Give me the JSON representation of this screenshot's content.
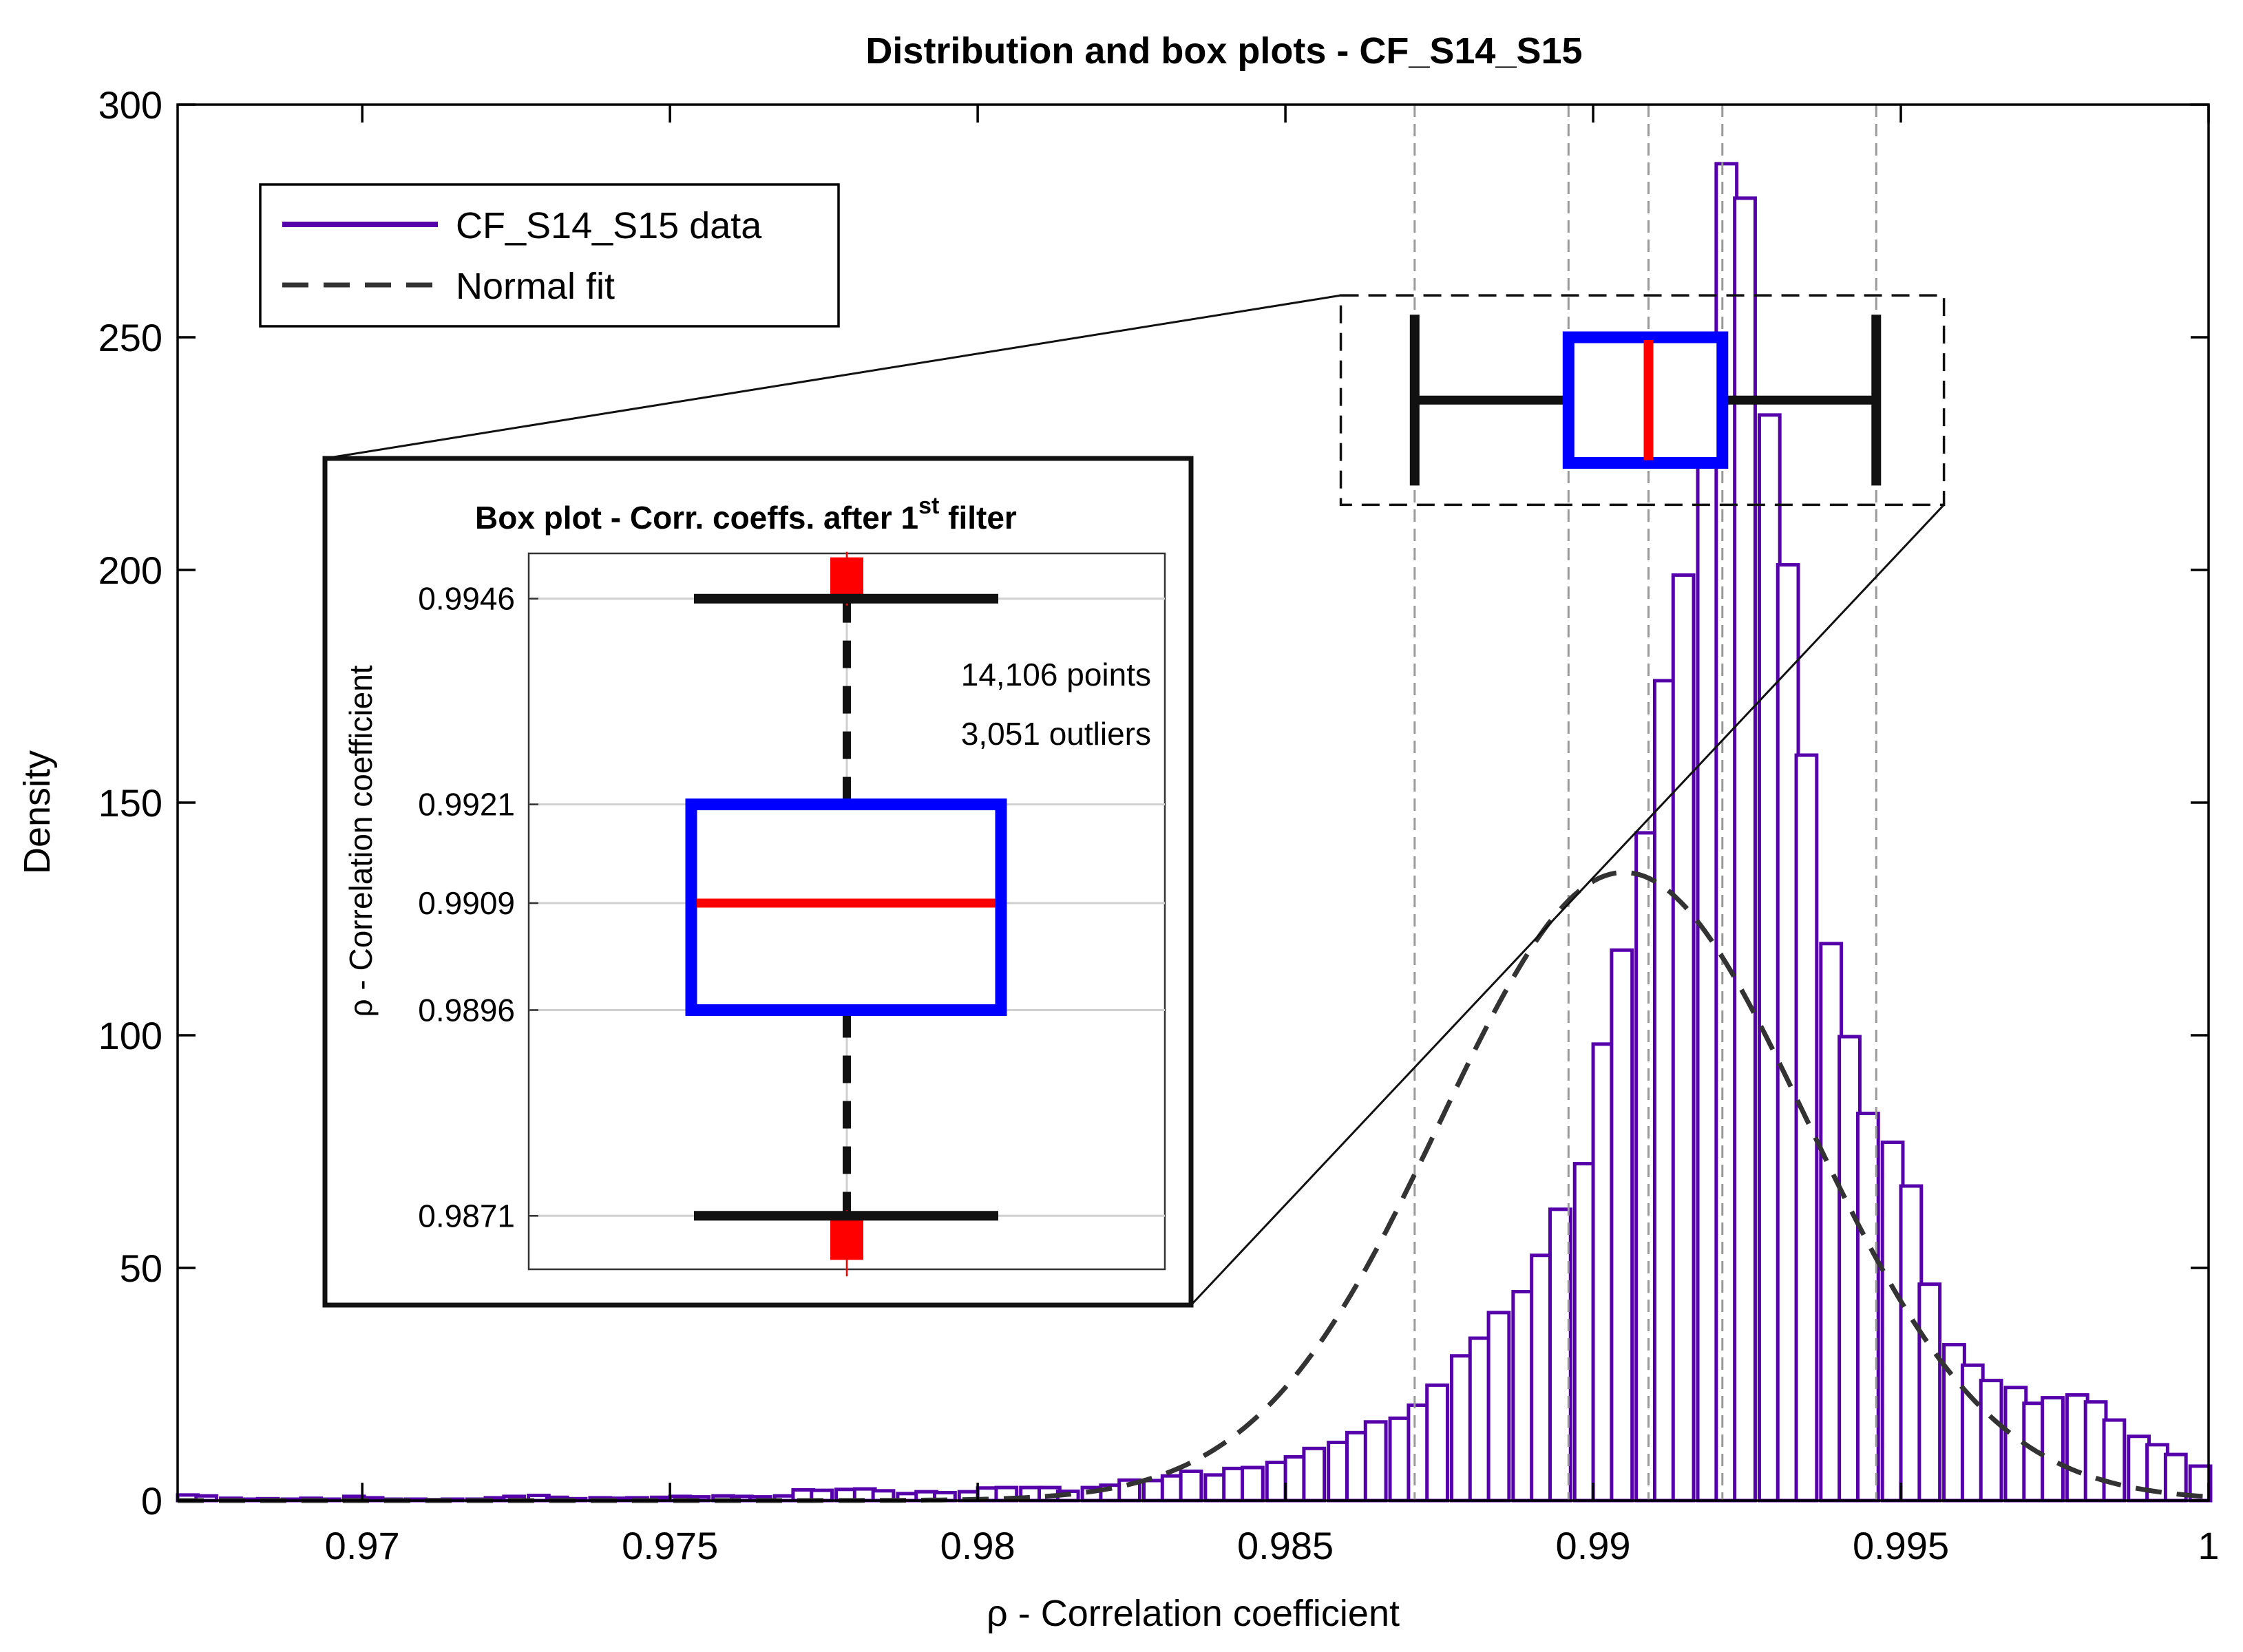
{
  "chart_data": {
    "type": "bar",
    "title": "Distribution and box plots - CF_S14_S15",
    "xlabel": "ρ - Correlation coefficient",
    "ylabel": "Density",
    "xlim": [
      0.967,
      1.0
    ],
    "ylim": [
      0,
      300
    ],
    "xticks": [
      0.97,
      0.975,
      0.98,
      0.985,
      0.99,
      0.995,
      1.0
    ],
    "xtick_labels": [
      "0.97",
      "0.975",
      "0.98",
      "0.985",
      "0.99",
      "0.995",
      "1"
    ],
    "yticks": [
      0,
      50,
      100,
      150,
      200,
      250,
      300
    ],
    "ytick_labels": [
      "0",
      "50",
      "100",
      "150",
      "200",
      "250",
      "300"
    ],
    "legend": {
      "position": "top-left",
      "entries": [
        "CF_S14_S15 data",
        "Normal fit"
      ]
    },
    "colors": {
      "histogram": "#5500aa",
      "fit": "#333333",
      "guide_lines": "#999999",
      "box": "#0000ff",
      "median": "#ff0000",
      "whisker": "#111111",
      "grid": "#d0d0d0"
    },
    "series": [
      {
        "name": "CF_S14_S15 data",
        "kind": "histogram",
        "bin_width": 0.000333,
        "bins": [
          [
            0.967,
            1.2
          ],
          [
            0.9673,
            1.0
          ],
          [
            0.9677,
            0.5
          ],
          [
            0.968,
            0.3
          ],
          [
            0.9683,
            0.4
          ],
          [
            0.9687,
            0.3
          ],
          [
            0.969,
            0.5
          ],
          [
            0.9693,
            0.3
          ],
          [
            0.9697,
            0.9
          ],
          [
            0.97,
            0.6
          ],
          [
            0.9703,
            0.3
          ],
          [
            0.9707,
            0.3
          ],
          [
            0.971,
            0.2
          ],
          [
            0.9713,
            0.3
          ],
          [
            0.9717,
            0.3
          ],
          [
            0.972,
            0.6
          ],
          [
            0.9723,
            0.9
          ],
          [
            0.9727,
            1.1
          ],
          [
            0.973,
            0.7
          ],
          [
            0.9733,
            0.4
          ],
          [
            0.9737,
            0.6
          ],
          [
            0.974,
            0.5
          ],
          [
            0.9743,
            0.6
          ],
          [
            0.9747,
            0.7
          ],
          [
            0.975,
            0.9
          ],
          [
            0.9753,
            0.8
          ],
          [
            0.9757,
            1.0
          ],
          [
            0.976,
            0.9
          ],
          [
            0.9763,
            0.8
          ],
          [
            0.9767,
            1.0
          ],
          [
            0.977,
            2.3
          ],
          [
            0.9773,
            2.2
          ],
          [
            0.9777,
            2.4
          ],
          [
            0.978,
            2.5
          ],
          [
            0.9783,
            2.1
          ],
          [
            0.9787,
            1.5
          ],
          [
            0.979,
            1.9
          ],
          [
            0.9793,
            1.7
          ],
          [
            0.9797,
            1.9
          ],
          [
            0.98,
            2.7
          ],
          [
            0.9803,
            2.8
          ],
          [
            0.9807,
            2.8
          ],
          [
            0.981,
            2.8
          ],
          [
            0.9813,
            2.0
          ],
          [
            0.9817,
            2.8
          ],
          [
            0.982,
            3.3
          ],
          [
            0.9823,
            4.4
          ],
          [
            0.9827,
            4.3
          ],
          [
            0.983,
            5.3
          ],
          [
            0.9833,
            6.3
          ],
          [
            0.9837,
            5.5
          ],
          [
            0.984,
            6.9
          ],
          [
            0.9843,
            7.1
          ],
          [
            0.9847,
            8.2
          ],
          [
            0.985,
            9.4
          ],
          [
            0.9853,
            11.2
          ],
          [
            0.9857,
            12.5
          ],
          [
            0.986,
            14.6
          ],
          [
            0.9863,
            16.9
          ],
          [
            0.9867,
            17.7
          ],
          [
            0.987,
            20.5
          ],
          [
            0.9873,
            24.8
          ],
          [
            0.9877,
            31.1
          ],
          [
            0.988,
            34.9
          ],
          [
            0.9883,
            40.4
          ],
          [
            0.9887,
            44.9
          ],
          [
            0.989,
            52.7
          ],
          [
            0.9893,
            62.6
          ],
          [
            0.9897,
            72.4
          ],
          [
            0.99,
            98.1
          ],
          [
            0.9903,
            118.3
          ],
          [
            0.9907,
            143.5
          ],
          [
            0.991,
            176.2
          ],
          [
            0.9913,
            198.9
          ],
          [
            0.9917,
            233.4
          ],
          [
            0.992,
            287.3
          ],
          [
            0.9923,
            279.9
          ],
          [
            0.9927,
            233.3
          ],
          [
            0.993,
            201.1
          ],
          [
            0.9933,
            160.2
          ],
          [
            0.9937,
            119.7
          ],
          [
            0.994,
            99.7
          ],
          [
            0.9943,
            83.2
          ],
          [
            0.9947,
            77.0
          ],
          [
            0.995,
            67.6
          ],
          [
            0.9953,
            46.5
          ],
          [
            0.9957,
            33.5
          ],
          [
            0.996,
            29.1
          ],
          [
            0.9963,
            25.8
          ],
          [
            0.9967,
            24.3
          ],
          [
            0.997,
            20.9
          ],
          [
            0.9973,
            22.1
          ],
          [
            0.9977,
            22.7
          ],
          [
            0.998,
            21.2
          ],
          [
            0.9983,
            17.3
          ],
          [
            0.9987,
            13.8
          ],
          [
            0.999,
            12.0
          ],
          [
            0.9993,
            9.9
          ],
          [
            0.9997,
            7.4
          ]
        ]
      },
      {
        "name": "Normal fit",
        "kind": "line",
        "mean": 0.9905,
        "std": 0.00297,
        "peak_density": 135
      }
    ],
    "vertical_guides": [
      0.9871,
      0.9896,
      0.9909,
      0.9921,
      0.9946
    ],
    "zoom_box": {
      "x_range": [
        0.9859,
        0.9957
      ],
      "y_range": [
        214,
        259
      ]
    },
    "box_plot": {
      "title": "Box plot - Corr. coeffs. after 1",
      "title_superscript": "st",
      "title_suffix": " filter",
      "ylabel": "ρ - Correlation coefficient",
      "ylim": [
        0.98645,
        0.99515
      ],
      "lower_whisker": 0.9871,
      "q1": 0.9896,
      "median": 0.9909,
      "q3": 0.9921,
      "upper_whisker": 0.9946,
      "ytick_labels": [
        "0.9871",
        "0.9896",
        "0.9909",
        "0.9921",
        "0.9946"
      ],
      "annotations": [
        "14,106 points",
        "3,051 outliers"
      ]
    }
  }
}
